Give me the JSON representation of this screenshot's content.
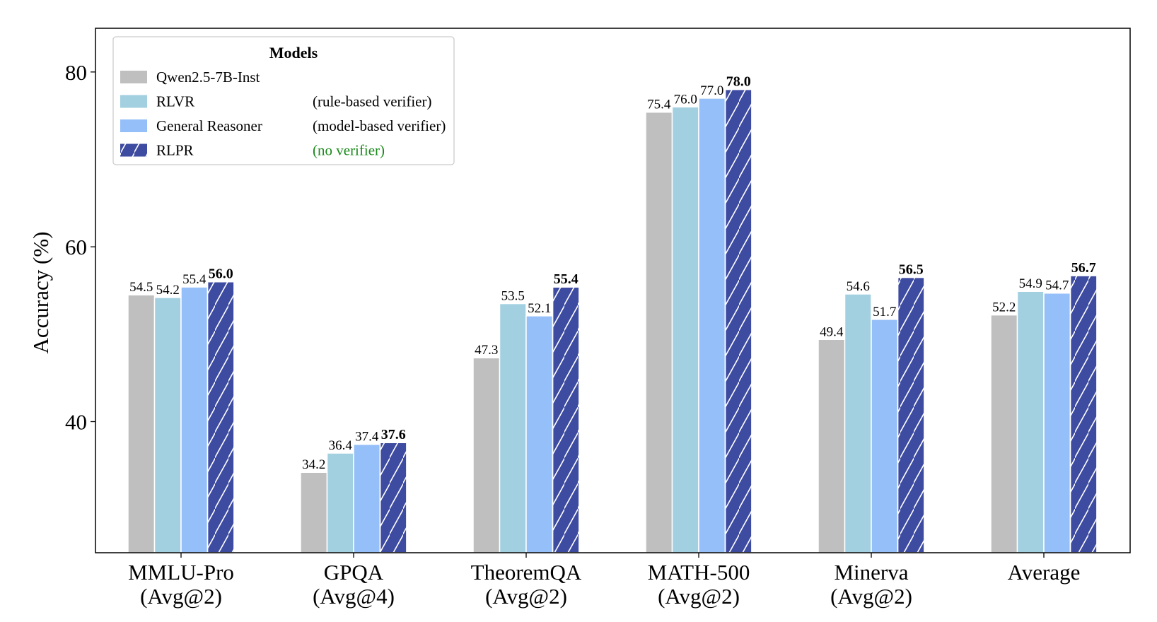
{
  "chart_data": {
    "type": "bar",
    "ylabel": "Accuracy (%)",
    "xlabel": "",
    "ylim": [
      25,
      85
    ],
    "yticks": [
      40,
      60,
      80
    ],
    "grid": false,
    "categories": [
      [
        "MMLU-Pro",
        "(Avg@2)"
      ],
      [
        "GPQA",
        "(Avg@4)"
      ],
      [
        "TheoremQA",
        "(Avg@2)"
      ],
      [
        "MATH-500",
        "(Avg@2)"
      ],
      [
        "Minerva",
        "(Avg@2)"
      ],
      [
        "Average",
        ""
      ]
    ],
    "legend": {
      "title": "Models",
      "placement": "top-left"
    },
    "series": [
      {
        "name": "Qwen2.5-7B-Inst",
        "note": "",
        "color": "#bfbfbf",
        "hatch": false,
        "values": [
          54.5,
          34.2,
          47.3,
          75.4,
          49.4,
          52.2
        ]
      },
      {
        "name": "RLVR",
        "note": "(rule-based verifier)",
        "color": "#a2d0e0",
        "hatch": false,
        "values": [
          54.2,
          36.4,
          53.5,
          76.0,
          54.6,
          54.9
        ]
      },
      {
        "name": "General Reasoner",
        "note": "(model-based verifier)",
        "color": "#95bff8",
        "hatch": false,
        "values": [
          55.4,
          37.4,
          52.1,
          77.0,
          51.7,
          54.7
        ]
      },
      {
        "name": "RLPR",
        "note": "(no verifier)",
        "note_color": "#1a8a1a",
        "color": "#3d4ba0",
        "hatch": true,
        "bold_labels": true,
        "values": [
          56.0,
          37.6,
          55.4,
          78.0,
          56.5,
          56.7
        ]
      }
    ]
  }
}
